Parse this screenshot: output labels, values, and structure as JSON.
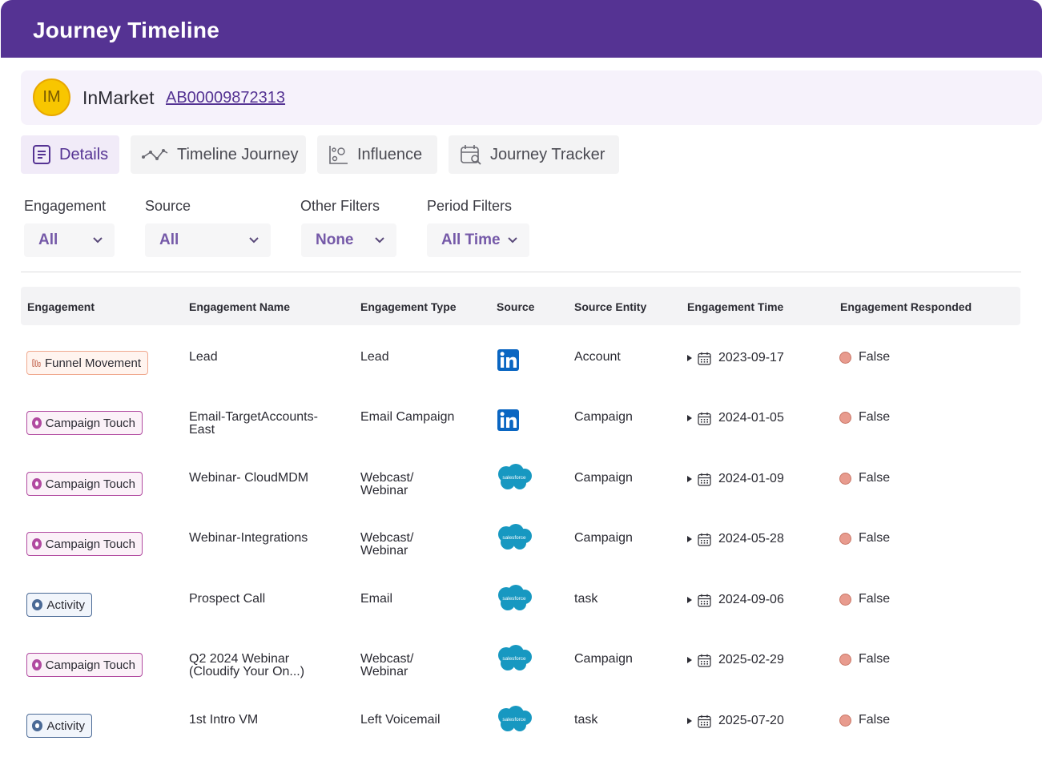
{
  "header": {
    "title": "Journey Timeline"
  },
  "account": {
    "initials": "IM",
    "name": "InMarket",
    "id": "AB00009872313"
  },
  "tabs": [
    {
      "label": "Details",
      "icon": "document-icon",
      "active": true
    },
    {
      "label": "Timeline Journey",
      "icon": "timeline-icon",
      "active": false
    },
    {
      "label": "Influence",
      "icon": "influence-chart-icon",
      "active": false
    },
    {
      "label": "Journey  Tracker",
      "icon": "calendar-search-icon",
      "active": false
    }
  ],
  "filters": [
    {
      "label": "Engagement",
      "value": "All"
    },
    {
      "label": "Source",
      "value": "All"
    },
    {
      "label": "Other Filters",
      "value": "None"
    },
    {
      "label": "Period Filters",
      "value": "All Time"
    }
  ],
  "table": {
    "columns": [
      "Engagement",
      "Engagement Name",
      "Engagement Type",
      "Source",
      "Source Entity",
      "Engagement Time",
      "Engagement Responded"
    ],
    "rows": [
      {
        "engagement": "Funnel Movement",
        "kind": "funnel",
        "name": [
          "Lead"
        ],
        "type": [
          "Lead"
        ],
        "source": "linkedin",
        "entity": "Account",
        "time": "2023-09-17",
        "responded": "False"
      },
      {
        "engagement": "Campaign Touch",
        "kind": "campaign",
        "name": [
          "Email-TargetAccounts-",
          "East"
        ],
        "type": [
          "Email Campaign"
        ],
        "source": "linkedin",
        "entity": "Campaign",
        "time": "2024-01-05",
        "responded": "False"
      },
      {
        "engagement": "Campaign Touch",
        "kind": "campaign",
        "name": [
          "Webinar- CloudMDM"
        ],
        "type": [
          "Webcast/",
          "Webinar"
        ],
        "source": "salesforce",
        "entity": "Campaign",
        "time": "2024-01-09",
        "responded": "False"
      },
      {
        "engagement": "Campaign Touch",
        "kind": "campaign",
        "name": [
          "Webinar-Integrations"
        ],
        "type": [
          "Webcast/",
          "Webinar"
        ],
        "source": "salesforce",
        "entity": "Campaign",
        "time": "2024-05-28",
        "responded": "False"
      },
      {
        "engagement": "Activity",
        "kind": "activity",
        "name": [
          "Prospect Call"
        ],
        "type": [
          "Email"
        ],
        "source": "salesforce",
        "entity": "task",
        "time": "2024-09-06",
        "responded": "False"
      },
      {
        "engagement": "Campaign Touch",
        "kind": "campaign",
        "name": [
          "Q2 2024 Webinar",
          "(Cloudify Your On...)"
        ],
        "type": [
          "Webcast/",
          "Webinar"
        ],
        "source": "salesforce",
        "entity": "Campaign",
        "time": "2025-02-29",
        "responded": "False"
      },
      {
        "engagement": "Activity",
        "kind": "activity",
        "name": [
          "1st Intro VM"
        ],
        "type": [
          "Left Voicemail"
        ],
        "source": "salesforce",
        "entity": "task",
        "time": "2025-07-20",
        "responded": "False"
      }
    ]
  },
  "source_labels": {
    "salesforce": "salesforce"
  },
  "colors": {
    "header": "#553393",
    "accent": "#553393",
    "avatar": "#f8c600",
    "linkedin": "#0a66c2",
    "salesforce": "#1798c1",
    "false_dot": "#e89b8e"
  }
}
